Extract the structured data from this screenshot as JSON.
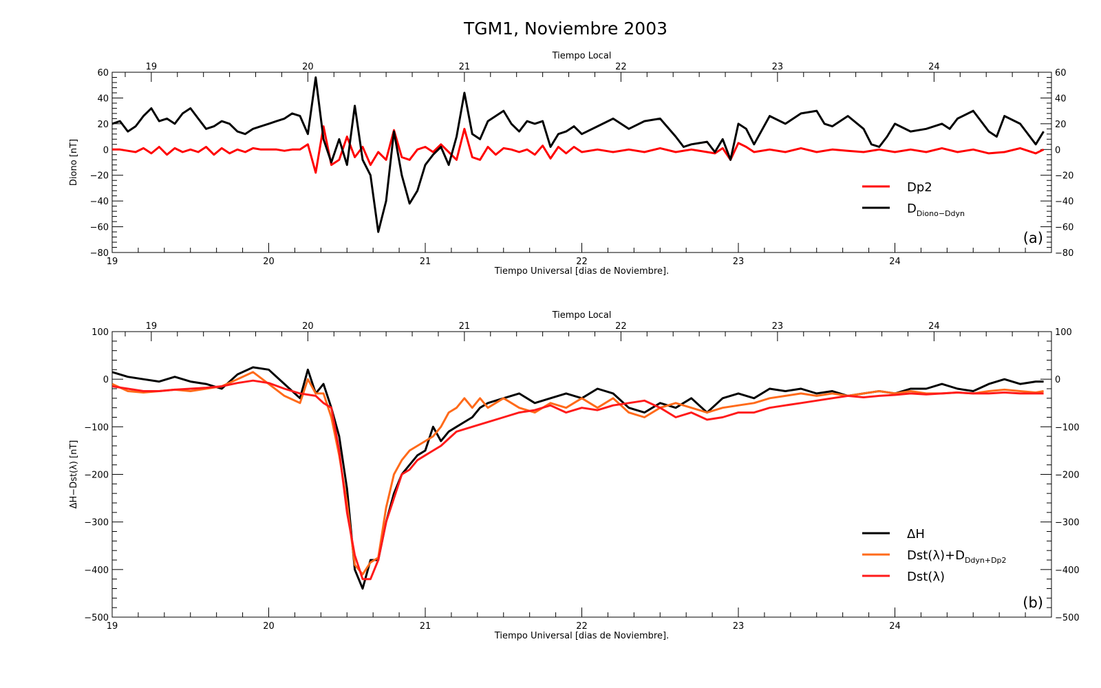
{
  "figure": {
    "title": "TGM1, Noviembre 2003"
  },
  "chart_data": [
    {
      "id": "a",
      "type": "line",
      "panel_label": "(a)",
      "ylabel": "Diono [nT]",
      "xlabel": "Tiempo Universal [dias de Noviembre].",
      "top_xlabel": "Tiempo Local",
      "xlim": [
        19,
        25
      ],
      "ylim": [
        -80,
        60
      ],
      "yticks": [
        -80,
        -60,
        -40,
        -20,
        0,
        20,
        40,
        60
      ],
      "ytick_labels": [
        "−80",
        "−60",
        "−40",
        "−20",
        "0",
        "20",
        "40",
        "60"
      ],
      "xticks": [
        19,
        20,
        21,
        22,
        23,
        24
      ],
      "xtick_labels": [
        "19",
        "20",
        "21",
        "22",
        "23",
        "24"
      ],
      "top_xticks": [
        19,
        20,
        21,
        22,
        23,
        24
      ],
      "top_xtick_labels": [
        "19",
        "20",
        "21",
        "22",
        "23",
        "24"
      ],
      "top_offset_days": -0.25,
      "legend_position": "lower-right",
      "series": [
        {
          "name": "Dp2",
          "color": "#ff0000",
          "x": [
            19.0,
            19.05,
            19.1,
            19.15,
            19.2,
            19.25,
            19.3,
            19.35,
            19.4,
            19.45,
            19.5,
            19.55,
            19.6,
            19.65,
            19.7,
            19.75,
            19.8,
            19.85,
            19.9,
            19.95,
            20.0,
            20.05,
            20.1,
            20.15,
            20.2,
            20.25,
            20.3,
            20.35,
            20.4,
            20.45,
            20.5,
            20.55,
            20.6,
            20.65,
            20.7,
            20.75,
            20.8,
            20.85,
            20.9,
            20.95,
            21.0,
            21.05,
            21.1,
            21.15,
            21.2,
            21.25,
            21.3,
            21.35,
            21.4,
            21.45,
            21.5,
            21.55,
            21.6,
            21.65,
            21.7,
            21.75,
            21.8,
            21.85,
            21.9,
            21.95,
            22.0,
            22.1,
            22.2,
            22.3,
            22.4,
            22.5,
            22.6,
            22.7,
            22.8,
            22.85,
            22.9,
            22.95,
            23.0,
            23.05,
            23.1,
            23.2,
            23.3,
            23.4,
            23.5,
            23.6,
            23.7,
            23.8,
            23.9,
            24.0,
            24.1,
            24.2,
            24.3,
            24.4,
            24.5,
            24.6,
            24.7,
            24.8,
            24.9,
            24.95
          ],
          "y": [
            0,
            0,
            -1,
            -2,
            1,
            -3,
            2,
            -4,
            1,
            -2,
            0,
            -2,
            2,
            -4,
            1,
            -3,
            0,
            -2,
            1,
            0,
            0,
            0,
            -1,
            0,
            0,
            4,
            -18,
            18,
            -12,
            -8,
            10,
            -6,
            2,
            -12,
            -2,
            -8,
            15,
            -6,
            -8,
            0,
            2,
            -2,
            4,
            -2,
            -8,
            16,
            -6,
            -8,
            2,
            -4,
            1,
            0,
            -2,
            0,
            -4,
            3,
            -7,
            2,
            -3,
            2,
            -2,
            0,
            -2,
            0,
            -2,
            1,
            -2,
            0,
            -2,
            -3,
            1,
            -8,
            5,
            2,
            -2,
            0,
            -2,
            1,
            -2,
            0,
            -1,
            -2,
            0,
            -2,
            0,
            -2,
            1,
            -2,
            0,
            -3,
            -2,
            1,
            -3,
            0
          ]
        },
        {
          "name": "D",
          "name_sub": "Diono−Ddyn",
          "color": "#000000",
          "x": [
            19.0,
            19.05,
            19.1,
            19.15,
            19.2,
            19.25,
            19.3,
            19.35,
            19.4,
            19.45,
            19.5,
            19.55,
            19.6,
            19.65,
            19.7,
            19.75,
            19.8,
            19.85,
            19.9,
            19.95,
            20.0,
            20.05,
            20.1,
            20.15,
            20.2,
            20.25,
            20.3,
            20.35,
            20.4,
            20.45,
            20.5,
            20.55,
            20.6,
            20.65,
            20.7,
            20.75,
            20.8,
            20.85,
            20.9,
            20.95,
            21.0,
            21.05,
            21.1,
            21.15,
            21.2,
            21.25,
            21.3,
            21.35,
            21.4,
            21.45,
            21.5,
            21.55,
            21.6,
            21.65,
            21.7,
            21.75,
            21.8,
            21.85,
            21.9,
            21.95,
            22.0,
            22.1,
            22.2,
            22.3,
            22.4,
            22.5,
            22.6,
            22.65,
            22.7,
            22.8,
            22.85,
            22.9,
            22.95,
            23.0,
            23.05,
            23.1,
            23.2,
            23.3,
            23.4,
            23.5,
            23.55,
            23.6,
            23.7,
            23.8,
            23.85,
            23.9,
            23.95,
            24.0,
            24.1,
            24.2,
            24.3,
            24.35,
            24.4,
            24.5,
            24.6,
            24.65,
            24.7,
            24.8,
            24.9,
            24.95
          ],
          "y": [
            20,
            22,
            14,
            18,
            26,
            32,
            22,
            24,
            20,
            28,
            32,
            24,
            16,
            18,
            22,
            20,
            14,
            12,
            16,
            18,
            20,
            22,
            24,
            28,
            26,
            12,
            56,
            8,
            -10,
            8,
            -12,
            34,
            -8,
            -20,
            -64,
            -40,
            14,
            -20,
            -42,
            -32,
            -12,
            -4,
            2,
            -12,
            10,
            44,
            12,
            8,
            22,
            26,
            30,
            20,
            14,
            22,
            20,
            22,
            2,
            12,
            14,
            18,
            12,
            18,
            24,
            16,
            22,
            24,
            10,
            2,
            4,
            6,
            -2,
            8,
            -8,
            20,
            16,
            4,
            26,
            20,
            28,
            30,
            20,
            18,
            26,
            16,
            4,
            2,
            10,
            20,
            14,
            16,
            20,
            16,
            24,
            30,
            14,
            10,
            26,
            20,
            4,
            14
          ]
        }
      ]
    },
    {
      "id": "b",
      "type": "line",
      "panel_label": "(b)",
      "ylabel": "ΔH−Dst(λ) [nT]",
      "xlabel": "Tiempo Universal [dias de Noviembre].",
      "top_xlabel": "Tiempo Local",
      "xlim": [
        19,
        25
      ],
      "ylim": [
        -500,
        100
      ],
      "yticks": [
        -500,
        -400,
        -300,
        -200,
        -100,
        0,
        100
      ],
      "ytick_labels": [
        "−500",
        "−400",
        "−300",
        "−200",
        "−100",
        "0",
        "100"
      ],
      "xticks": [
        19,
        20,
        21,
        22,
        23,
        24
      ],
      "xtick_labels": [
        "19",
        "20",
        "21",
        "22",
        "23",
        "24"
      ],
      "top_xticks": [
        19,
        20,
        21,
        22,
        23,
        24
      ],
      "top_xtick_labels": [
        "19",
        "20",
        "21",
        "22",
        "23",
        "24"
      ],
      "top_offset_days": -0.25,
      "legend_position": "lower-right",
      "series": [
        {
          "name": "ΔH",
          "color": "#000000",
          "x": [
            19.0,
            19.1,
            19.2,
            19.3,
            19.4,
            19.5,
            19.6,
            19.7,
            19.8,
            19.9,
            20.0,
            20.1,
            20.2,
            20.25,
            20.3,
            20.35,
            20.4,
            20.45,
            20.5,
            20.55,
            20.6,
            20.65,
            20.7,
            20.75,
            20.8,
            20.85,
            20.9,
            20.95,
            21.0,
            21.05,
            21.1,
            21.15,
            21.2,
            21.25,
            21.3,
            21.35,
            21.4,
            21.5,
            21.6,
            21.7,
            21.8,
            21.9,
            22.0,
            22.1,
            22.2,
            22.3,
            22.4,
            22.5,
            22.6,
            22.7,
            22.8,
            22.9,
            23.0,
            23.1,
            23.2,
            23.3,
            23.4,
            23.5,
            23.6,
            23.7,
            23.8,
            23.9,
            24.0,
            24.1,
            24.2,
            24.3,
            24.4,
            24.5,
            24.6,
            24.7,
            24.8,
            24.9,
            24.95
          ],
          "y": [
            15,
            5,
            0,
            -5,
            5,
            -5,
            -10,
            -20,
            10,
            25,
            20,
            -10,
            -40,
            20,
            -30,
            -10,
            -60,
            -120,
            -230,
            -400,
            -440,
            -380,
            -380,
            -300,
            -240,
            -200,
            -180,
            -160,
            -150,
            -100,
            -130,
            -110,
            -100,
            -90,
            -80,
            -60,
            -50,
            -40,
            -30,
            -50,
            -40,
            -30,
            -40,
            -20,
            -30,
            -60,
            -70,
            -50,
            -60,
            -40,
            -70,
            -40,
            -30,
            -40,
            -20,
            -25,
            -20,
            -30,
            -25,
            -35,
            -30,
            -25,
            -30,
            -20,
            -20,
            -10,
            -20,
            -25,
            -10,
            0,
            -10,
            -5,
            -5
          ]
        },
        {
          "name": "Dst(λ)+D",
          "name_sub": "Ddyn+Dp2",
          "color": "#ff6a1a",
          "x": [
            19.0,
            19.1,
            19.2,
            19.3,
            19.4,
            19.5,
            19.6,
            19.7,
            19.8,
            19.9,
            20.0,
            20.1,
            20.2,
            20.25,
            20.3,
            20.35,
            20.4,
            20.45,
            20.5,
            20.55,
            20.6,
            20.65,
            20.7,
            20.75,
            20.8,
            20.85,
            20.9,
            20.95,
            21.0,
            21.05,
            21.1,
            21.15,
            21.2,
            21.25,
            21.3,
            21.35,
            21.4,
            21.5,
            21.6,
            21.7,
            21.8,
            21.9,
            22.0,
            22.1,
            22.2,
            22.3,
            22.4,
            22.5,
            22.6,
            22.7,
            22.8,
            22.9,
            23.0,
            23.1,
            23.2,
            23.3,
            23.4,
            23.5,
            23.6,
            23.7,
            23.8,
            23.9,
            24.0,
            24.1,
            24.2,
            24.3,
            24.4,
            24.5,
            24.6,
            24.7,
            24.8,
            24.9,
            24.95
          ],
          "y": [
            -10,
            -25,
            -28,
            -25,
            -22,
            -25,
            -20,
            -15,
            0,
            15,
            -10,
            -35,
            -50,
            0,
            -30,
            -30,
            -80,
            -160,
            -260,
            -390,
            -410,
            -385,
            -375,
            -270,
            -200,
            -170,
            -150,
            -140,
            -130,
            -120,
            -100,
            -70,
            -60,
            -40,
            -60,
            -40,
            -60,
            -40,
            -60,
            -70,
            -50,
            -60,
            -40,
            -60,
            -40,
            -70,
            -80,
            -60,
            -50,
            -60,
            -70,
            -60,
            -55,
            -50,
            -40,
            -35,
            -30,
            -35,
            -30,
            -35,
            -30,
            -25,
            -30,
            -25,
            -30,
            -30,
            -28,
            -30,
            -25,
            -22,
            -25,
            -28,
            -25
          ]
        },
        {
          "name": "Dst(λ)",
          "color": "#ff1a1a",
          "x": [
            19.0,
            19.1,
            19.2,
            19.3,
            19.4,
            19.5,
            19.6,
            19.7,
            19.8,
            19.9,
            20.0,
            20.1,
            20.2,
            20.3,
            20.35,
            20.4,
            20.45,
            20.5,
            20.55,
            20.6,
            20.65,
            20.7,
            20.75,
            20.8,
            20.85,
            20.9,
            20.95,
            21.0,
            21.05,
            21.1,
            21.15,
            21.2,
            21.3,
            21.4,
            21.5,
            21.6,
            21.7,
            21.8,
            21.9,
            22.0,
            22.1,
            22.2,
            22.3,
            22.4,
            22.5,
            22.6,
            22.7,
            22.8,
            22.9,
            23.0,
            23.1,
            23.2,
            23.3,
            23.4,
            23.5,
            23.6,
            23.7,
            23.8,
            23.9,
            24.0,
            24.1,
            24.2,
            24.3,
            24.4,
            24.5,
            24.6,
            24.7,
            24.8,
            24.9,
            24.95
          ],
          "y": [
            -15,
            -20,
            -25,
            -25,
            -22,
            -20,
            -18,
            -15,
            -8,
            -3,
            -8,
            -20,
            -30,
            -35,
            -50,
            -60,
            -150,
            -280,
            -370,
            -420,
            -420,
            -380,
            -300,
            -250,
            -200,
            -190,
            -170,
            -160,
            -150,
            -140,
            -125,
            -110,
            -100,
            -90,
            -80,
            -70,
            -65,
            -55,
            -70,
            -60,
            -65,
            -55,
            -50,
            -45,
            -60,
            -80,
            -70,
            -85,
            -80,
            -70,
            -70,
            -60,
            -55,
            -50,
            -45,
            -40,
            -35,
            -38,
            -35,
            -33,
            -30,
            -32,
            -30,
            -28,
            -30,
            -30,
            -28,
            -30,
            -30,
            -30
          ]
        }
      ]
    }
  ]
}
